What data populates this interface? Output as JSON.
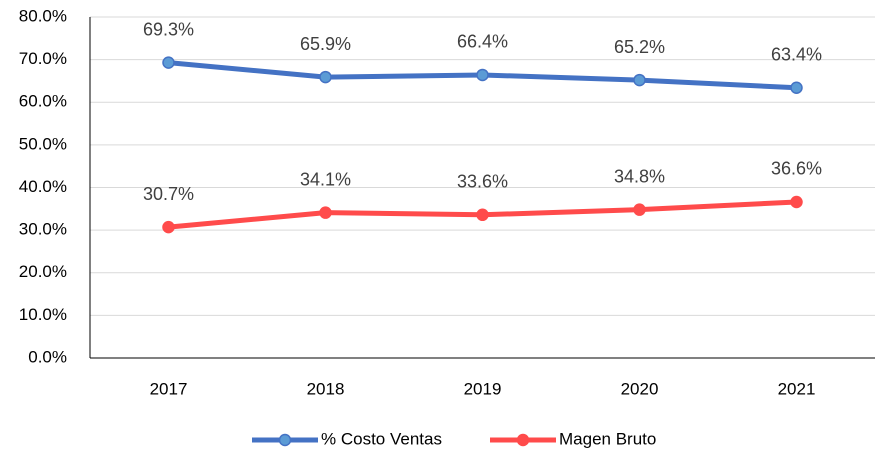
{
  "chart_data": {
    "type": "line",
    "categories": [
      "2017",
      "2018",
      "2019",
      "2020",
      "2021"
    ],
    "series": [
      {
        "name": "% Costo Ventas",
        "color": "#4472c4",
        "marker_color": "#5b9bd5",
        "values": [
          69.3,
          65.9,
          66.4,
          65.2,
          63.4
        ],
        "value_labels": [
          "69.3%",
          "65.9%",
          "66.4%",
          "65.2%",
          "63.4%"
        ]
      },
      {
        "name": "Magen Bruto",
        "color": "#ff4b4b",
        "marker_color": "#ff4b4b",
        "values": [
          30.7,
          34.1,
          33.6,
          34.8,
          36.6
        ],
        "value_labels": [
          "30.7%",
          "34.1%",
          "33.6%",
          "34.8%",
          "36.6%"
        ]
      }
    ],
    "ylim": [
      0,
      80
    ],
    "yticks": [
      {
        "value": 0,
        "label": "0.0%"
      },
      {
        "value": 10,
        "label": "10.0%"
      },
      {
        "value": 20,
        "label": "20.0%"
      },
      {
        "value": 30,
        "label": "30.0%"
      },
      {
        "value": 40,
        "label": "40.0%"
      },
      {
        "value": 50,
        "label": "50.0%"
      },
      {
        "value": 60,
        "label": "60.0%"
      },
      {
        "value": 70,
        "label": "70.0%"
      },
      {
        "value": 80,
        "label": "80.0%"
      }
    ],
    "grid": true,
    "legend": "bottom"
  }
}
